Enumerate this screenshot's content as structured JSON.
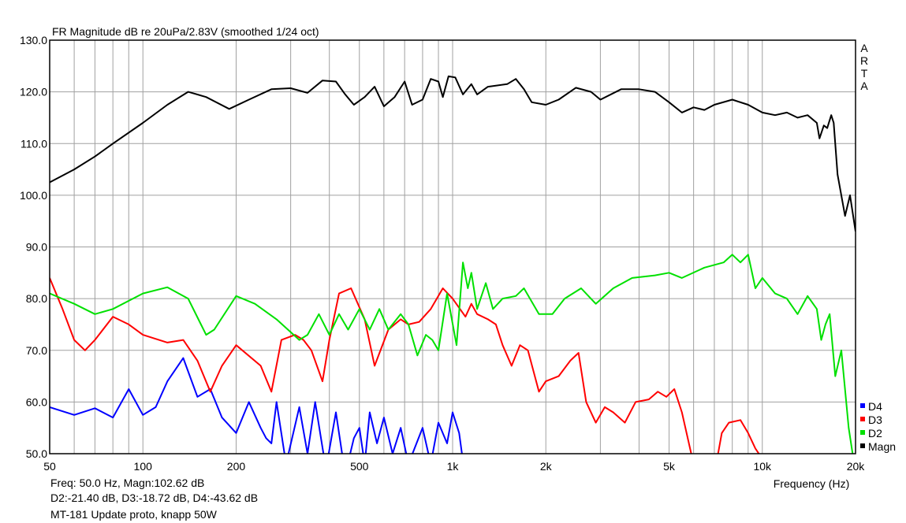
{
  "chart_data": {
    "type": "line",
    "title": "FR Magnitude dB re 20uPa/2.83V (smoothed 1/24 oct)",
    "xlabel": "Frequency (Hz)",
    "ylabel": "",
    "xscale": "log",
    "xlim": [
      50,
      20000
    ],
    "ylim": [
      50,
      130
    ],
    "grid": true,
    "legend_placement": "bottom-right",
    "watermark": "ARTA",
    "yticks": [
      "130.0",
      "120.0",
      "110.0",
      "100.0",
      "90.0",
      "80.0",
      "70.0",
      "60.0",
      "50.0"
    ],
    "xticks": [
      {
        "v": 50,
        "l": "50"
      },
      {
        "v": 100,
        "l": "100"
      },
      {
        "v": 200,
        "l": "200"
      },
      {
        "v": 500,
        "l": "500"
      },
      {
        "v": 1000,
        "l": "1k"
      },
      {
        "v": 2000,
        "l": "2k"
      },
      {
        "v": 5000,
        "l": "5k"
      },
      {
        "v": 10000,
        "l": "10k"
      },
      {
        "v": 20000,
        "l": "20k"
      }
    ],
    "series": [
      {
        "name": "Magn",
        "color": "#000000",
        "points": [
          [
            50,
            102.5
          ],
          [
            60,
            105
          ],
          [
            70,
            107.5
          ],
          [
            80,
            110
          ],
          [
            100,
            114
          ],
          [
            120,
            117.5
          ],
          [
            140,
            120
          ],
          [
            160,
            119
          ],
          [
            190,
            116.7
          ],
          [
            220,
            118.5
          ],
          [
            260,
            120.5
          ],
          [
            300,
            120.7
          ],
          [
            340,
            119.8
          ],
          [
            380,
            122.2
          ],
          [
            420,
            122
          ],
          [
            450,
            119.5
          ],
          [
            480,
            117.5
          ],
          [
            520,
            119
          ],
          [
            560,
            121
          ],
          [
            600,
            117.2
          ],
          [
            650,
            119
          ],
          [
            700,
            122
          ],
          [
            740,
            117.5
          ],
          [
            800,
            118.5
          ],
          [
            850,
            122.5
          ],
          [
            900,
            122
          ],
          [
            930,
            119
          ],
          [
            970,
            123
          ],
          [
            1020,
            122.8
          ],
          [
            1080,
            119.5
          ],
          [
            1150,
            121.5
          ],
          [
            1200,
            119.5
          ],
          [
            1300,
            121
          ],
          [
            1500,
            121.5
          ],
          [
            1600,
            122.5
          ],
          [
            1700,
            120.5
          ],
          [
            1800,
            118
          ],
          [
            2000,
            117.5
          ],
          [
            2200,
            118.5
          ],
          [
            2500,
            120.8
          ],
          [
            2800,
            120
          ],
          [
            3000,
            118.5
          ],
          [
            3500,
            120.5
          ],
          [
            4000,
            120.5
          ],
          [
            4500,
            120
          ],
          [
            5000,
            118
          ],
          [
            5500,
            116
          ],
          [
            6000,
            117
          ],
          [
            6500,
            116.5
          ],
          [
            7000,
            117.5
          ],
          [
            8000,
            118.5
          ],
          [
            9000,
            117.5
          ],
          [
            10000,
            116
          ],
          [
            11000,
            115.5
          ],
          [
            12000,
            116
          ],
          [
            13000,
            115
          ],
          [
            14000,
            115.5
          ],
          [
            15000,
            114
          ],
          [
            15300,
            111
          ],
          [
            15800,
            113.5
          ],
          [
            16200,
            113
          ],
          [
            16700,
            115.5
          ],
          [
            17000,
            114
          ],
          [
            17500,
            104
          ],
          [
            18500,
            96
          ],
          [
            19200,
            100
          ],
          [
            20000,
            93
          ]
        ]
      },
      {
        "name": "D2",
        "color": "#00e000",
        "points": [
          [
            50,
            81
          ],
          [
            60,
            79
          ],
          [
            70,
            77
          ],
          [
            80,
            78
          ],
          [
            100,
            81
          ],
          [
            120,
            82.2
          ],
          [
            140,
            80
          ],
          [
            160,
            73
          ],
          [
            170,
            74
          ],
          [
            200,
            80.5
          ],
          [
            230,
            79
          ],
          [
            270,
            76
          ],
          [
            320,
            72
          ],
          [
            340,
            73
          ],
          [
            370,
            77
          ],
          [
            400,
            73
          ],
          [
            430,
            77
          ],
          [
            460,
            74
          ],
          [
            500,
            78
          ],
          [
            540,
            74
          ],
          [
            580,
            78
          ],
          [
            620,
            74
          ],
          [
            680,
            77
          ],
          [
            720,
            75
          ],
          [
            770,
            69
          ],
          [
            820,
            73
          ],
          [
            860,
            72
          ],
          [
            900,
            70
          ],
          [
            960,
            81
          ],
          [
            1030,
            71
          ],
          [
            1080,
            87
          ],
          [
            1120,
            82
          ],
          [
            1150,
            85
          ],
          [
            1200,
            78
          ],
          [
            1280,
            83
          ],
          [
            1350,
            78
          ],
          [
            1450,
            80
          ],
          [
            1600,
            80.5
          ],
          [
            1700,
            82
          ],
          [
            1900,
            77
          ],
          [
            2100,
            77
          ],
          [
            2300,
            80
          ],
          [
            2600,
            82
          ],
          [
            2900,
            79
          ],
          [
            3300,
            82
          ],
          [
            3800,
            84
          ],
          [
            4500,
            84.5
          ],
          [
            5000,
            85
          ],
          [
            5500,
            84
          ],
          [
            6500,
            86
          ],
          [
            7500,
            87
          ],
          [
            8000,
            88.5
          ],
          [
            8500,
            87
          ],
          [
            9000,
            88.5
          ],
          [
            9500,
            82
          ],
          [
            10000,
            84
          ],
          [
            11000,
            81
          ],
          [
            12000,
            80
          ],
          [
            13000,
            77
          ],
          [
            14000,
            80.5
          ],
          [
            15000,
            78
          ],
          [
            15500,
            72
          ],
          [
            16000,
            75
          ],
          [
            16500,
            77
          ],
          [
            17200,
            65
          ],
          [
            18000,
            70
          ],
          [
            19000,
            55
          ],
          [
            19800,
            48
          ]
        ]
      },
      {
        "name": "D3",
        "color": "#ff0000",
        "points": [
          [
            50,
            84
          ],
          [
            55,
            78
          ],
          [
            60,
            72
          ],
          [
            65,
            70
          ],
          [
            70,
            72
          ],
          [
            80,
            76.5
          ],
          [
            90,
            75
          ],
          [
            100,
            73
          ],
          [
            120,
            71.5
          ],
          [
            135,
            72
          ],
          [
            150,
            68
          ],
          [
            165,
            62
          ],
          [
            180,
            67
          ],
          [
            200,
            71
          ],
          [
            240,
            67
          ],
          [
            260,
            62
          ],
          [
            280,
            72
          ],
          [
            310,
            73
          ],
          [
            330,
            72
          ],
          [
            350,
            70
          ],
          [
            380,
            64
          ],
          [
            400,
            72
          ],
          [
            430,
            81
          ],
          [
            470,
            82
          ],
          [
            520,
            76
          ],
          [
            560,
            67
          ],
          [
            620,
            74
          ],
          [
            680,
            76
          ],
          [
            720,
            75
          ],
          [
            780,
            75.5
          ],
          [
            850,
            78
          ],
          [
            930,
            82
          ],
          [
            1000,
            80
          ],
          [
            1100,
            76.5
          ],
          [
            1150,
            79
          ],
          [
            1200,
            77
          ],
          [
            1300,
            76
          ],
          [
            1380,
            75
          ],
          [
            1450,
            71
          ],
          [
            1550,
            67
          ],
          [
            1650,
            71
          ],
          [
            1750,
            70
          ],
          [
            1900,
            62
          ],
          [
            2000,
            64
          ],
          [
            2200,
            65
          ],
          [
            2400,
            68
          ],
          [
            2550,
            69.5
          ],
          [
            2700,
            60
          ],
          [
            2900,
            56
          ],
          [
            3100,
            59
          ],
          [
            3300,
            58
          ],
          [
            3600,
            56
          ],
          [
            3900,
            60
          ],
          [
            4300,
            60.5
          ],
          [
            4600,
            62
          ],
          [
            4900,
            61
          ],
          [
            5200,
            62.5
          ],
          [
            5500,
            58
          ],
          [
            6000,
            48
          ],
          [
            7000,
            46
          ],
          [
            7400,
            54
          ],
          [
            7800,
            56
          ],
          [
            8500,
            56.5
          ],
          [
            9000,
            54
          ],
          [
            9500,
            51
          ],
          [
            10000,
            49
          ]
        ]
      },
      {
        "name": "D4",
        "color": "#0000ff",
        "points": [
          [
            50,
            59
          ],
          [
            60,
            57.5
          ],
          [
            70,
            58.8
          ],
          [
            80,
            57
          ],
          [
            90,
            62.5
          ],
          [
            100,
            57.5
          ],
          [
            110,
            59
          ],
          [
            120,
            64
          ],
          [
            135,
            68.5
          ],
          [
            150,
            61
          ],
          [
            165,
            62.5
          ],
          [
            180,
            57
          ],
          [
            200,
            54
          ],
          [
            220,
            60
          ],
          [
            240,
            55
          ],
          [
            250,
            53
          ],
          [
            260,
            52
          ],
          [
            270,
            60
          ],
          [
            290,
            48
          ],
          [
            320,
            59
          ],
          [
            340,
            50
          ],
          [
            360,
            60
          ],
          [
            390,
            47
          ],
          [
            420,
            58
          ],
          [
            450,
            46
          ],
          [
            480,
            53
          ],
          [
            500,
            55
          ],
          [
            520,
            48
          ],
          [
            540,
            58
          ],
          [
            570,
            52
          ],
          [
            600,
            57
          ],
          [
            640,
            50
          ],
          [
            680,
            55
          ],
          [
            720,
            48
          ],
          [
            800,
            55
          ],
          [
            850,
            48
          ],
          [
            900,
            56
          ],
          [
            960,
            52
          ],
          [
            1000,
            58
          ],
          [
            1050,
            54
          ],
          [
            1100,
            45
          ]
        ]
      }
    ]
  },
  "readout": {
    "line1": "Freq: 50.0 Hz, Magn:102.62 dB",
    "line2": "D2:-21.40 dB, D3:-18.72 dB, D4:-43.62 dB",
    "caption": "MT-181 Update proto, knapp 50W"
  }
}
